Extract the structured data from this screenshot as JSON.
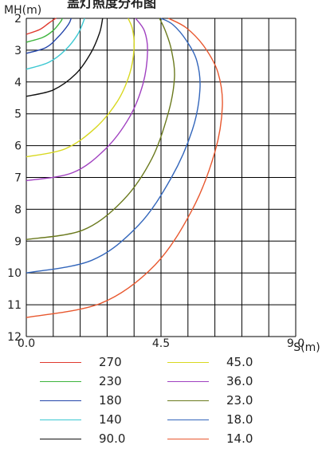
{
  "chart_data": {
    "type": "line",
    "title": "盖灯照度分布图",
    "xlabel": "S(m)",
    "ylabel": "MH(m)",
    "xlim": [
      0,
      9.0
    ],
    "ylim": [
      2,
      12
    ],
    "x_ticks": [
      "0.0",
      "4.5",
      "9.0"
    ],
    "y_ticks": [
      "2",
      "3",
      "4",
      "5",
      "6",
      "7",
      "8",
      "9",
      "10",
      "11",
      "12"
    ],
    "y_inverted": true,
    "grid": true,
    "legend_position": "bottom",
    "series": [
      {
        "name": "270",
        "color": "#e03a2f",
        "x": [
          0.0,
          0.45,
          0.75,
          0.95,
          1.0
        ],
        "y": [
          2.5,
          2.35,
          2.15,
          2.02,
          2.0
        ]
      },
      {
        "name": "230",
        "color": "#3cb43c",
        "x": [
          0.0,
          0.55,
          0.9,
          1.15,
          1.2
        ],
        "y": [
          2.75,
          2.6,
          2.38,
          2.1,
          2.0
        ]
      },
      {
        "name": "180",
        "color": "#2244aa",
        "x": [
          0.0,
          0.65,
          1.05,
          1.4,
          1.5
        ],
        "y": [
          3.1,
          2.92,
          2.6,
          2.2,
          2.0
        ]
      },
      {
        "name": "140",
        "color": "#3cc8d2",
        "x": [
          0.0,
          0.75,
          1.3,
          1.72,
          1.95
        ],
        "y": [
          3.6,
          3.38,
          3.0,
          2.5,
          2.0
        ]
      },
      {
        "name": "90.0",
        "color": "#111111",
        "x": [
          0.0,
          0.9,
          1.65,
          2.15,
          2.45,
          2.55
        ],
        "y": [
          4.45,
          4.25,
          3.75,
          3.1,
          2.45,
          2.0
        ]
      },
      {
        "name": "45.0",
        "color": "#d8d820",
        "x": [
          0.0,
          1.3,
          2.3,
          3.05,
          3.45,
          3.6,
          3.55,
          3.4
        ],
        "y": [
          6.35,
          6.1,
          5.45,
          4.6,
          3.75,
          2.95,
          2.35,
          2.0
        ]
      },
      {
        "name": "36.0",
        "color": "#a040c0",
        "x": [
          0.0,
          1.55,
          2.65,
          3.45,
          3.9,
          4.05,
          3.95,
          3.65
        ],
        "y": [
          7.1,
          6.85,
          6.1,
          5.1,
          4.05,
          3.05,
          2.4,
          2.0
        ]
      },
      {
        "name": "23.0",
        "color": "#6b7a1e",
        "x": [
          0.0,
          1.9,
          3.25,
          4.2,
          4.75,
          4.95,
          4.85,
          4.65,
          4.45
        ],
        "y": [
          8.95,
          8.65,
          7.7,
          6.4,
          4.95,
          3.85,
          3.0,
          2.4,
          2.0
        ]
      },
      {
        "name": "18.0",
        "color": "#3366bb",
        "x": [
          0.0,
          2.2,
          3.75,
          4.85,
          5.55,
          5.8,
          5.7,
          5.35,
          4.9,
          4.5
        ],
        "y": [
          10.0,
          9.6,
          8.5,
          7.0,
          5.5,
          4.25,
          3.35,
          2.7,
          2.2,
          2.0
        ]
      },
      {
        "name": "14.0",
        "color": "#e8582f",
        "x": [
          0.0,
          2.5,
          4.3,
          5.55,
          6.3,
          6.55,
          6.4,
          5.95,
          5.35,
          4.75
        ],
        "y": [
          11.4,
          10.95,
          9.75,
          8.0,
          6.2,
          4.75,
          3.7,
          2.9,
          2.3,
          2.0
        ]
      }
    ]
  }
}
